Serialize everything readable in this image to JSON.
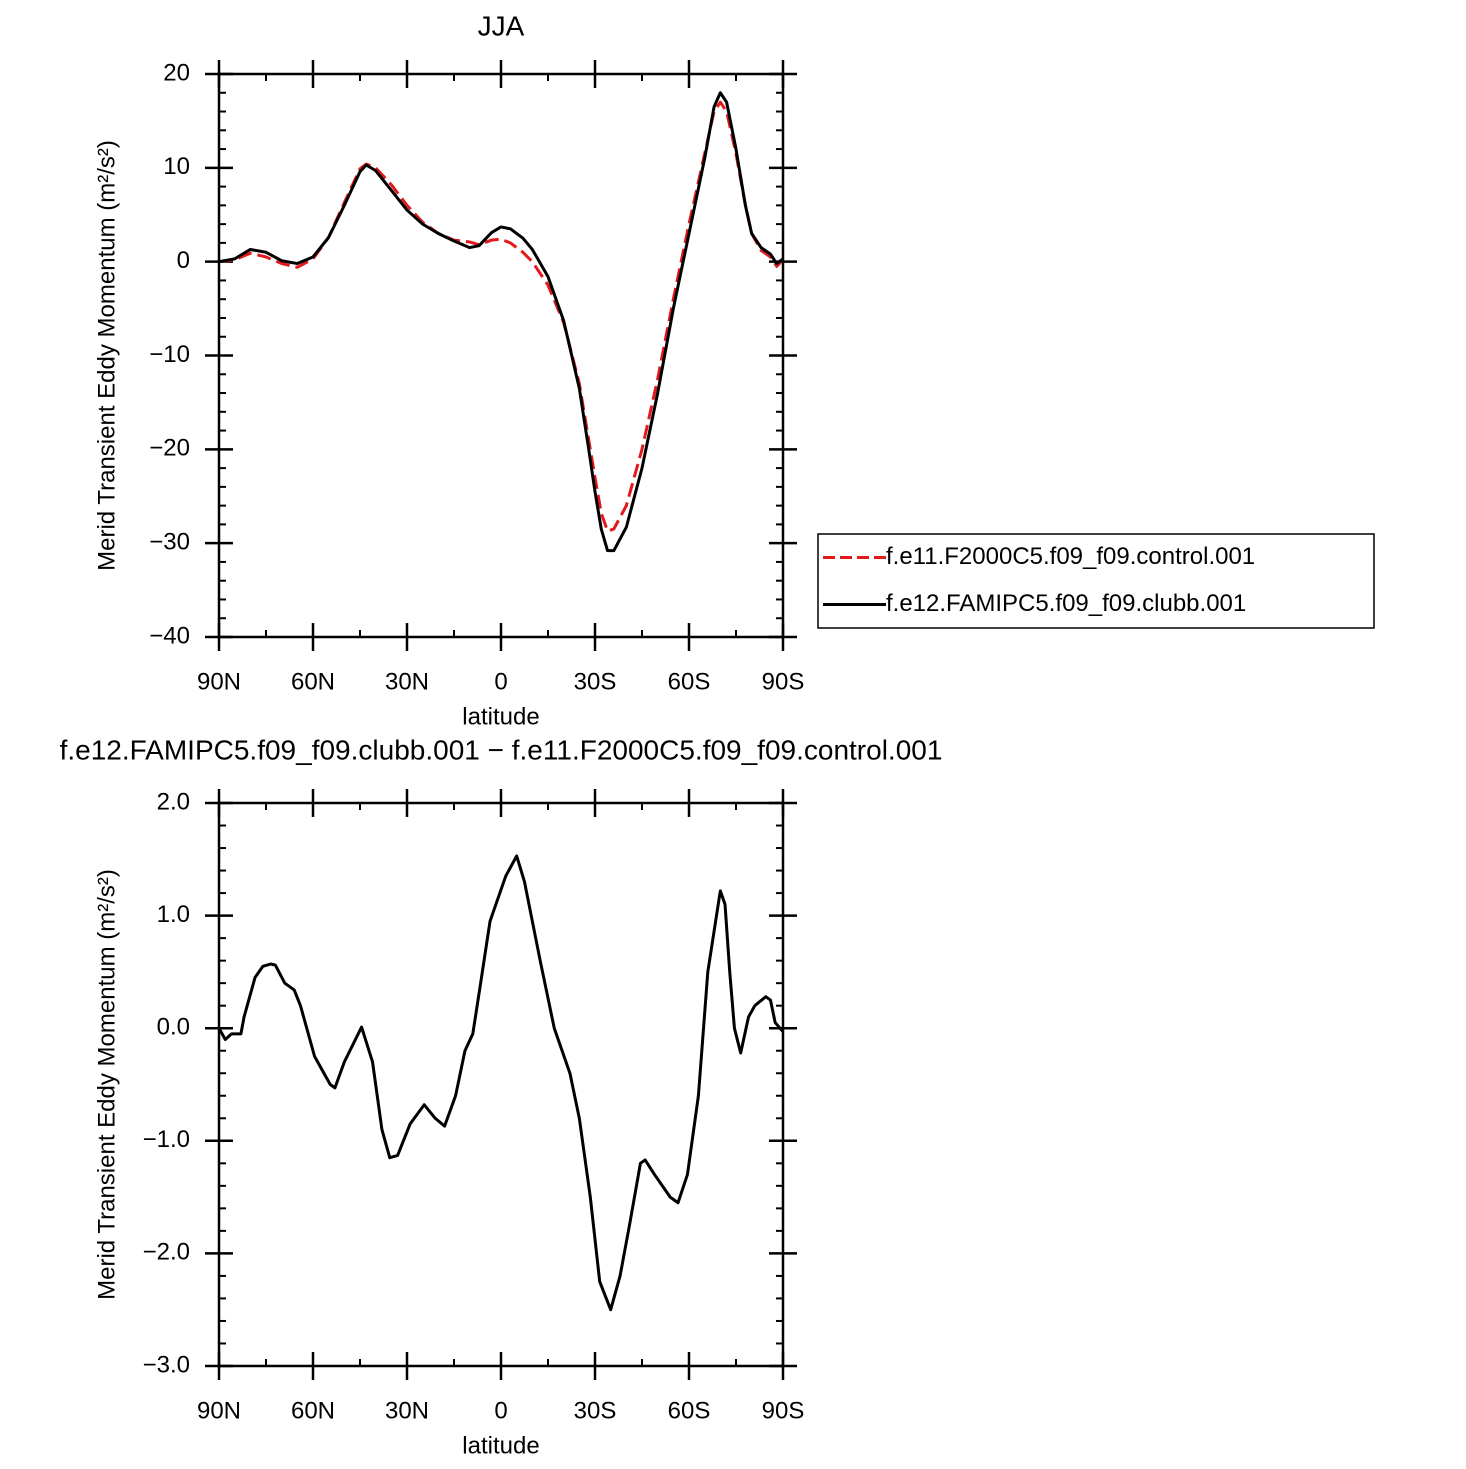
{
  "chart_data": [
    {
      "type": "line",
      "title": "JJA",
      "xlabel": "latitude",
      "ylabel": "Merid Transient Eddy Momentum (m²/s²)",
      "x": [
        90,
        85,
        80,
        75,
        70,
        65,
        60,
        55,
        50,
        45,
        43,
        40,
        35,
        30,
        25,
        20,
        15,
        10,
        7,
        3,
        0,
        -3,
        -7,
        -10,
        -15,
        -20,
        -25,
        -28,
        -30,
        -32,
        -34,
        -36,
        -40,
        -45,
        -50,
        -55,
        -60,
        -65,
        -68,
        -70,
        -72,
        -75,
        -78,
        -80,
        -83,
        -86,
        -88,
        -90
      ],
      "series": [
        {
          "name": "f.e11.F2000C5.f09_f09.control.001",
          "color": "#e31a1c",
          "dash": true,
          "values": [
            0,
            0.2,
            0.9,
            0.5,
            -0.2,
            -0.6,
            0.3,
            2.6,
            6.3,
            9.9,
            10.4,
            10,
            8.2,
            6,
            4.2,
            3,
            2.3,
            2.1,
            1.8,
            2.3,
            2.4,
            2,
            1,
            0,
            -2.5,
            -6.5,
            -13,
            -19,
            -23,
            -26.8,
            -28.7,
            -28.5,
            -26,
            -20,
            -12.5,
            -4,
            4,
            11.5,
            16,
            17,
            16,
            11.5,
            6,
            3,
            1.2,
            0.5,
            -0.5,
            0.2
          ]
        },
        {
          "name": "f.e12.FAMIPC5.f09_f09.clubb.001",
          "color": "#000000",
          "dash": false,
          "values": [
            0,
            0.3,
            1.3,
            1,
            0.1,
            -0.2,
            0.5,
            2.6,
            6,
            9.6,
            10.3,
            9.7,
            7.6,
            5.5,
            4,
            3,
            2.2,
            1.5,
            1.7,
            3.1,
            3.7,
            3.5,
            2.5,
            1.3,
            -1.6,
            -6.3,
            -13.5,
            -20,
            -24.5,
            -28.5,
            -30.8,
            -30.8,
            -28.3,
            -22,
            -14,
            -5,
            3,
            11,
            16.5,
            18,
            17,
            12,
            6,
            3,
            1.5,
            0.8,
            -0.2,
            0.3
          ]
        }
      ],
      "xlim": [
        90,
        -90
      ],
      "xticks": [
        {
          "value": 90,
          "label": "90N"
        },
        {
          "value": 60,
          "label": "60N"
        },
        {
          "value": 30,
          "label": "30N"
        },
        0,
        {
          "value": -30,
          "label": "30S"
        },
        {
          "value": -60,
          "label": "60S"
        },
        {
          "value": -90,
          "label": "90S"
        }
      ],
      "ylim": [
        -40,
        20
      ],
      "yticks": [
        20,
        10,
        0,
        {
          "value": -10,
          "label": "−10"
        },
        {
          "value": -20,
          "label": "−20"
        },
        {
          "value": -30,
          "label": "−30"
        },
        {
          "value": -40,
          "label": "−40"
        }
      ],
      "legend": "right"
    },
    {
      "type": "line",
      "title": "f.e12.FAMIPC5.f09_f09.clubb.001 − f.e11.F2000C5.f09_f09.control.001",
      "xlabel": "latitude",
      "ylabel": "Merid Transient Eddy Momentum (m²/s²)",
      "x": [
        90,
        88,
        86,
        83,
        82,
        78.5,
        76,
        73.5,
        72,
        69,
        66,
        64,
        59.5,
        54.5,
        53,
        50,
        44.5,
        41,
        38,
        35.5,
        33,
        29,
        24.5,
        21,
        18,
        14.5,
        11.5,
        9,
        6.5,
        3.5,
        -1.5,
        -5,
        -7.5,
        -12.5,
        -17,
        -22,
        -25,
        -28.5,
        -31.5,
        -35,
        -38,
        -41,
        -44.5,
        -46,
        -49,
        -54,
        -56.5,
        -59.5,
        -63,
        -66,
        -70,
        -71.5,
        -73,
        -74.5,
        -76.5,
        -79,
        -81,
        -84.5,
        -86,
        -87.5,
        -90
      ],
      "series": [
        {
          "color": "#000000",
          "dash": false,
          "values": [
            0,
            -0.1,
            -0.05,
            -0.05,
            0.1,
            0.45,
            0.55,
            0.57,
            0.56,
            0.4,
            0.34,
            0.2,
            -0.25,
            -0.5,
            -0.53,
            -0.3,
            0.01,
            -0.3,
            -0.9,
            -1.15,
            -1.13,
            -0.85,
            -0.68,
            -0.8,
            -0.87,
            -0.6,
            -0.2,
            -0.05,
            0.4,
            0.95,
            1.35,
            1.53,
            1.3,
            0.6,
            0,
            -0.4,
            -0.8,
            -1.5,
            -2.25,
            -2.5,
            -2.2,
            -1.75,
            -1.2,
            -1.17,
            -1.3,
            -1.5,
            -1.55,
            -1.3,
            -0.6,
            0.5,
            1.22,
            1.1,
            0.5,
            0,
            -0.22,
            0.1,
            0.2,
            0.28,
            0.25,
            0.05,
            -0.03
          ]
        }
      ],
      "xlim": [
        90,
        -90
      ],
      "xticks": [
        {
          "value": 90,
          "label": "90N"
        },
        {
          "value": 60,
          "label": "60N"
        },
        {
          "value": 30,
          "label": "30N"
        },
        0,
        {
          "value": -30,
          "label": "30S"
        },
        {
          "value": -60,
          "label": "60S"
        },
        {
          "value": -90,
          "label": "90S"
        }
      ],
      "ylim": [
        -3,
        2
      ],
      "yticks": [
        {
          "value": 2,
          "label": "2.0"
        },
        {
          "value": 1,
          "label": "1.0"
        },
        {
          "value": 0,
          "label": "0.0"
        },
        {
          "value": -1,
          "label": "−1.0"
        },
        {
          "value": -2,
          "label": "−2.0"
        },
        {
          "value": -3,
          "label": "−3.0"
        }
      ]
    }
  ]
}
